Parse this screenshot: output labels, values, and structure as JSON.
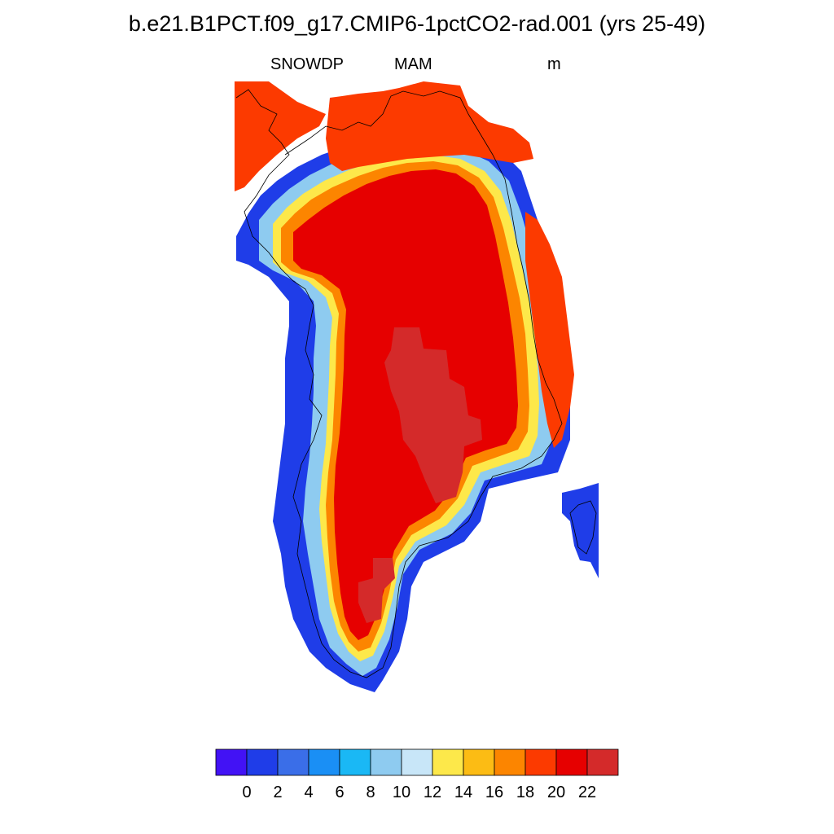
{
  "title": "b.e21.B1PCT.f09_g17.CMIP6-1pctCO2-rad.001 (yrs 25-49)",
  "subtitle_left": "SNOWDP",
  "subtitle_center": "MAM",
  "subtitle_right": "m",
  "colors": {
    "palette": [
      "#4212f5",
      "#1f3de8",
      "#3a6ee8",
      "#1a8ff5",
      "#1ab8f5",
      "#8ecbf0",
      "#c8e6f8",
      "#fde84a",
      "#fcbc14",
      "#fc8500",
      "#fc3a00",
      "#e60000",
      "#d42a2a"
    ],
    "coastline": "#000000"
  },
  "chart_data": {
    "type": "heatmap",
    "variable": "SNOWDP",
    "season": "MAM",
    "units": "m",
    "colorbar": {
      "levels": [
        0,
        2,
        4,
        6,
        8,
        10,
        12,
        14,
        16,
        18,
        20,
        22
      ],
      "tick_labels": [
        "0",
        "2",
        "4",
        "6",
        "8",
        "10",
        "12",
        "14",
        "16",
        "18",
        "20",
        "22"
      ]
    },
    "region_notes": "Greenland: interior ice sheet exceeds 20 m (red), margins 14-18 m (yellow-orange), outer coastal cells 0-4 m (blue)"
  }
}
